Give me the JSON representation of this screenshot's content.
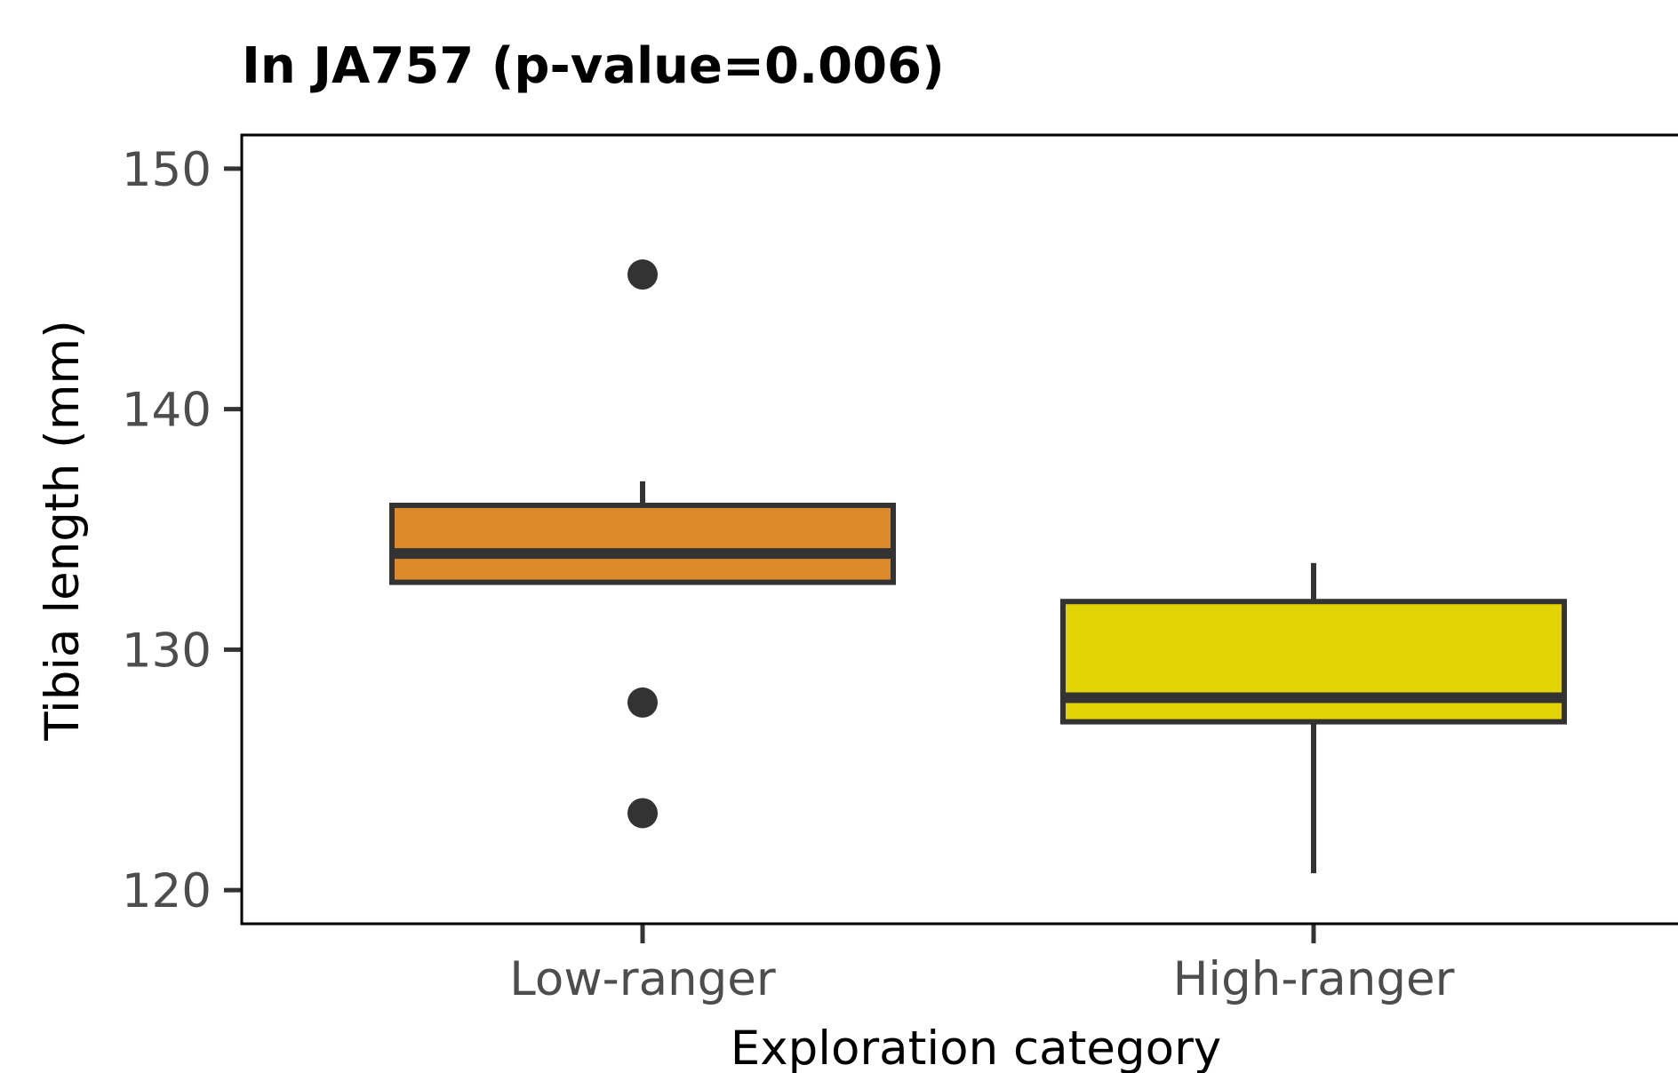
{
  "chart_data": {
    "type": "box",
    "title": "In JA757 (p-value=0.006)",
    "xlabel": "Exploration category",
    "ylabel": "Tibia length (mm)",
    "ylim": [
      118.6,
      151.4
    ],
    "yticks": [
      "120",
      "130",
      "140",
      "150"
    ],
    "grid": false,
    "categories": [
      "Low-ranger",
      "High-ranger"
    ],
    "boxes": [
      {
        "category": "Low-ranger",
        "color": "#dd8a2a",
        "whisker_low": 132.7,
        "q1": 132.8,
        "median": 134.0,
        "q3": 136.0,
        "whisker_high": 137.0,
        "outliers": [
          145.6,
          127.8,
          123.2
        ]
      },
      {
        "category": "High-ranger",
        "color": "#e2d404",
        "whisker_low": 120.7,
        "q1": 127.0,
        "median": 128.0,
        "q3": 132.0,
        "whisker_high": 133.6,
        "outliers": []
      }
    ]
  }
}
